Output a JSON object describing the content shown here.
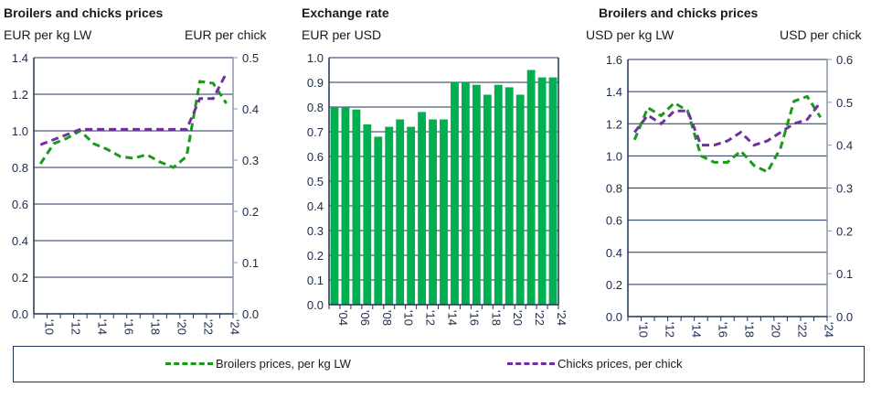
{
  "colors": {
    "broilers": "#1a9a1a",
    "chicks": "#7030a0",
    "bars": "#00b050",
    "grid": "#1f3354"
  },
  "legend": {
    "broilers": "Broilers prices, per kg LW",
    "chicks": "Chicks prices, per chick"
  },
  "chart_data": [
    {
      "type": "line",
      "title": "Broilers and chicks prices",
      "ylabel": "EUR per kg LW",
      "y2label": "EUR per chick",
      "x": [
        2010,
        2011,
        2012,
        2013,
        2014,
        2015,
        2016,
        2017,
        2018,
        2019,
        2020,
        2021,
        2022,
        2023,
        2024
      ],
      "xticks": [
        "'10",
        "'12",
        "'14",
        "'16",
        "'18",
        "'20",
        "'22",
        "'24"
      ],
      "ylim": [
        0,
        1.4
      ],
      "y2lim": [
        0,
        0.5
      ],
      "grid": true,
      "series": [
        {
          "name": "Broilers prices, per kg LW",
          "axis": "left",
          "values": [
            0.82,
            0.93,
            0.96,
            1.0,
            0.93,
            0.9,
            0.86,
            0.85,
            0.87,
            0.83,
            0.8,
            0.86,
            1.27,
            1.26,
            1.15
          ]
        },
        {
          "name": "Chicks prices, per chick",
          "axis": "right",
          "values": [
            0.33,
            0.34,
            0.35,
            0.36,
            0.36,
            0.36,
            0.36,
            0.36,
            0.36,
            0.36,
            0.36,
            0.36,
            0.42,
            0.42,
            0.47
          ]
        }
      ]
    },
    {
      "type": "bar",
      "title": "Exchange rate",
      "ylabel": "EUR per USD",
      "x": [
        2004,
        2005,
        2006,
        2007,
        2008,
        2009,
        2010,
        2011,
        2012,
        2013,
        2014,
        2015,
        2016,
        2017,
        2018,
        2019,
        2020,
        2021,
        2022,
        2023,
        2024
      ],
      "xticks": [
        "'04",
        "'06",
        "'08",
        "'10",
        "'12",
        "'14",
        "'16",
        "'18",
        "'20",
        "'22",
        "'24"
      ],
      "ylim": [
        0,
        1.0
      ],
      "grid": true,
      "values": [
        0.8,
        0.8,
        0.79,
        0.73,
        0.68,
        0.72,
        0.75,
        0.72,
        0.78,
        0.75,
        0.75,
        0.9,
        0.9,
        0.89,
        0.85,
        0.89,
        0.88,
        0.85,
        0.95,
        0.92,
        0.92
      ]
    },
    {
      "type": "line",
      "title": "Broilers and chicks prices",
      "ylabel": "USD per kg LW",
      "y2label": "USD per chick",
      "x": [
        2010,
        2011,
        2012,
        2013,
        2014,
        2015,
        2016,
        2017,
        2018,
        2019,
        2020,
        2021,
        2022,
        2023,
        2024
      ],
      "xticks": [
        "'10",
        "'12",
        "'14",
        "'16",
        "'18",
        "'20",
        "'22",
        "'24"
      ],
      "ylim": [
        0,
        1.6
      ],
      "y2lim": [
        0,
        0.6
      ],
      "grid": true,
      "series": [
        {
          "name": "Broilers prices, per kg LW",
          "axis": "left",
          "values": [
            1.1,
            1.3,
            1.25,
            1.33,
            1.28,
            1.0,
            0.96,
            0.96,
            1.03,
            0.94,
            0.9,
            1.05,
            1.34,
            1.37,
            1.24
          ]
        },
        {
          "name": "Chicks prices, per chick",
          "axis": "right",
          "values": [
            0.43,
            0.47,
            0.45,
            0.48,
            0.48,
            0.4,
            0.4,
            0.41,
            0.43,
            0.4,
            0.41,
            0.43,
            0.45,
            0.46,
            0.5
          ]
        }
      ]
    }
  ]
}
